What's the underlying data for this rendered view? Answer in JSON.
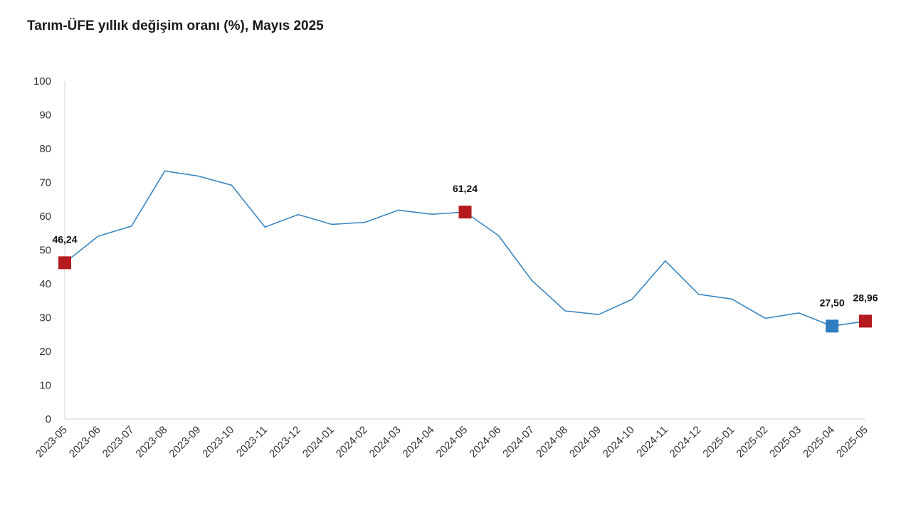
{
  "chart_data": {
    "type": "line",
    "title": "Tarım-ÜFE yıllık değişim oranı (%), Mayıs 2025",
    "xlabel": "",
    "ylabel": "",
    "ylim": [
      0,
      100
    ],
    "yticks": [
      0,
      10,
      20,
      30,
      40,
      50,
      60,
      70,
      80,
      90,
      100
    ],
    "grid": false,
    "legend": "none",
    "categories": [
      "2023-05",
      "2023-06",
      "2023-07",
      "2023-08",
      "2023-09",
      "2023-10",
      "2023-11",
      "2023-12",
      "2024-01",
      "2024-02",
      "2024-03",
      "2024-04",
      "2024-05",
      "2024-06",
      "2024-07",
      "2024-08",
      "2024-09",
      "2024-10",
      "2024-11",
      "2024-12",
      "2025-01",
      "2025-02",
      "2025-03",
      "2025-04",
      "2025-05"
    ],
    "series": [
      {
        "name": "Tarım-ÜFE",
        "color": "#3b86c0",
        "values": [
          46.24,
          54.1,
          57.1,
          73.4,
          71.9,
          69.2,
          56.8,
          60.5,
          57.6,
          58.2,
          61.8,
          60.6,
          61.24,
          54.3,
          41.0,
          32.0,
          30.9,
          35.4,
          46.8,
          36.9,
          35.5,
          29.8,
          31.4,
          27.5,
          28.96
        ]
      }
    ],
    "highlights": [
      {
        "category": "2023-05",
        "value": 46.24,
        "label": "46,24",
        "color": "#b31b1f"
      },
      {
        "category": "2024-05",
        "value": 61.24,
        "label": "61,24",
        "color": "#b31b1f"
      },
      {
        "category": "2025-04",
        "value": 27.5,
        "label": "27,50",
        "color": "#2f7dc0"
      },
      {
        "category": "2025-05",
        "value": 28.96,
        "label": "28,96",
        "color": "#b31b1f"
      }
    ]
  }
}
